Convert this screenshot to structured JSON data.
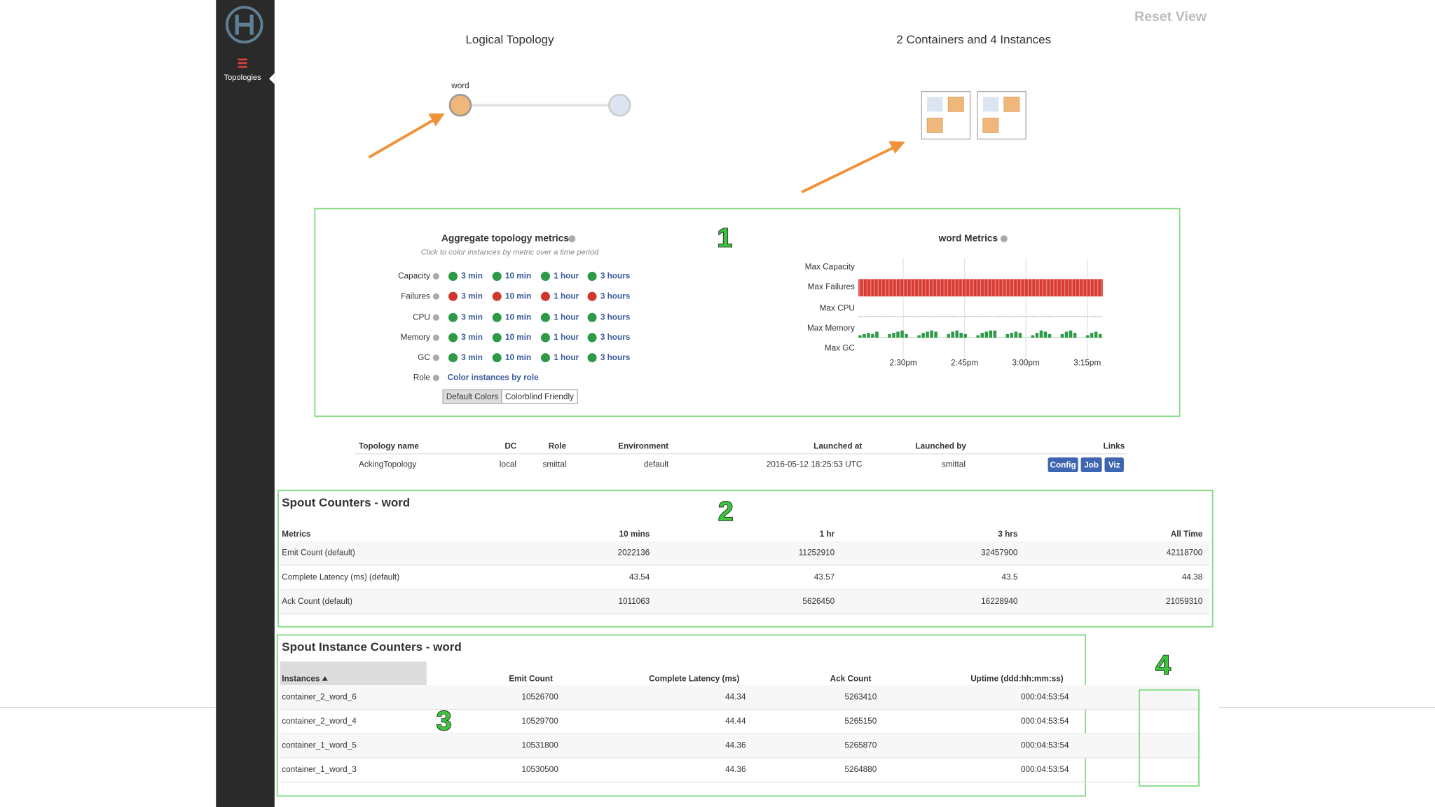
{
  "sidebar": {
    "nav": "Topologies"
  },
  "reset": "Reset View",
  "logical_topology": {
    "title": "Logical Topology",
    "node": "word"
  },
  "containers": {
    "title": "2 Containers and 4 Instances"
  },
  "callouts": [
    "1",
    "2",
    "3",
    "4"
  ],
  "aggregate": {
    "title": "Aggregate topology metrics",
    "subtitle": "Click to color instances by metric over a time period",
    "windows": [
      "3 min",
      "10 min",
      "1 hour",
      "3 hours"
    ],
    "rows": [
      {
        "label": "Capacity",
        "color": "#2e9a48"
      },
      {
        "label": "Failures",
        "color": "#d0382f"
      },
      {
        "label": "CPU",
        "color": "#2e9a48"
      },
      {
        "label": "Memory",
        "color": "#2e9a48"
      },
      {
        "label": "GC",
        "color": "#2e9a48"
      }
    ],
    "role": {
      "label": "Role",
      "link": "Color instances by role"
    },
    "buttons": [
      "Default Colors",
      "Colorblind Friendly"
    ]
  },
  "word_metrics": {
    "title": "word Metrics",
    "rows": [
      "Max Capacity",
      "Max Failures",
      "Max CPU",
      "Max Memory",
      "Max GC"
    ],
    "xticks": [
      "2:30pm",
      "2:45pm",
      "3:00pm",
      "3:15pm"
    ],
    "memory": [
      2,
      3,
      4,
      3,
      5,
      0,
      0,
      3,
      4,
      5,
      6,
      3,
      0,
      0,
      2,
      4,
      5,
      6,
      5,
      0,
      0,
      3,
      5,
      6,
      4,
      3,
      0,
      0,
      2,
      4,
      5,
      6,
      6,
      0,
      0,
      3,
      4,
      5,
      4,
      0,
      0,
      2,
      4,
      6,
      5,
      3,
      0,
      0,
      3,
      5,
      6,
      4,
      0,
      0,
      2,
      4,
      5,
      3
    ]
  },
  "topology": {
    "headers": [
      "Topology name",
      "DC",
      "Role",
      "Environment",
      "Launched at",
      "Launched by",
      "Links"
    ],
    "row": [
      "AckingTopology",
      "local",
      "smittal",
      "default",
      "2016-05-12 18:25:53 UTC",
      "smittal"
    ],
    "links": [
      "Config",
      "Job",
      "Viz"
    ]
  },
  "spout_counters": {
    "title": "Spout Counters - word",
    "headers": [
      "Metrics",
      "10 mins",
      "1 hr",
      "3 hrs",
      "All Time"
    ],
    "rows": [
      [
        "Emit Count (default)",
        "2022136",
        "11252910",
        "32457900",
        "42118700"
      ],
      [
        "Complete Latency (ms) (default)",
        "43.54",
        "43.57",
        "43.5",
        "44.38"
      ],
      [
        "Ack Count (default)",
        "1011063",
        "5626450",
        "16228940",
        "21059310"
      ]
    ]
  },
  "instance_counters": {
    "title": "Spout Instance Counters - word",
    "headers": [
      "Instances",
      "Emit Count",
      "Complete Latency (ms)",
      "Ack Count",
      "Uptime (ddd:hh:mm:ss)"
    ],
    "rows": [
      [
        "container_2_word_6",
        "10526700",
        "44.34",
        "5263410",
        "000:04:53:54"
      ],
      [
        "container_2_word_4",
        "10529700",
        "44.44",
        "5265150",
        "000:04:53:54"
      ],
      [
        "container_1_word_5",
        "10531800",
        "44.36",
        "5265870",
        "000:04:53:54"
      ],
      [
        "container_1_word_3",
        "10530500",
        "44.36",
        "5264880",
        "000:04:53:54"
      ]
    ]
  }
}
